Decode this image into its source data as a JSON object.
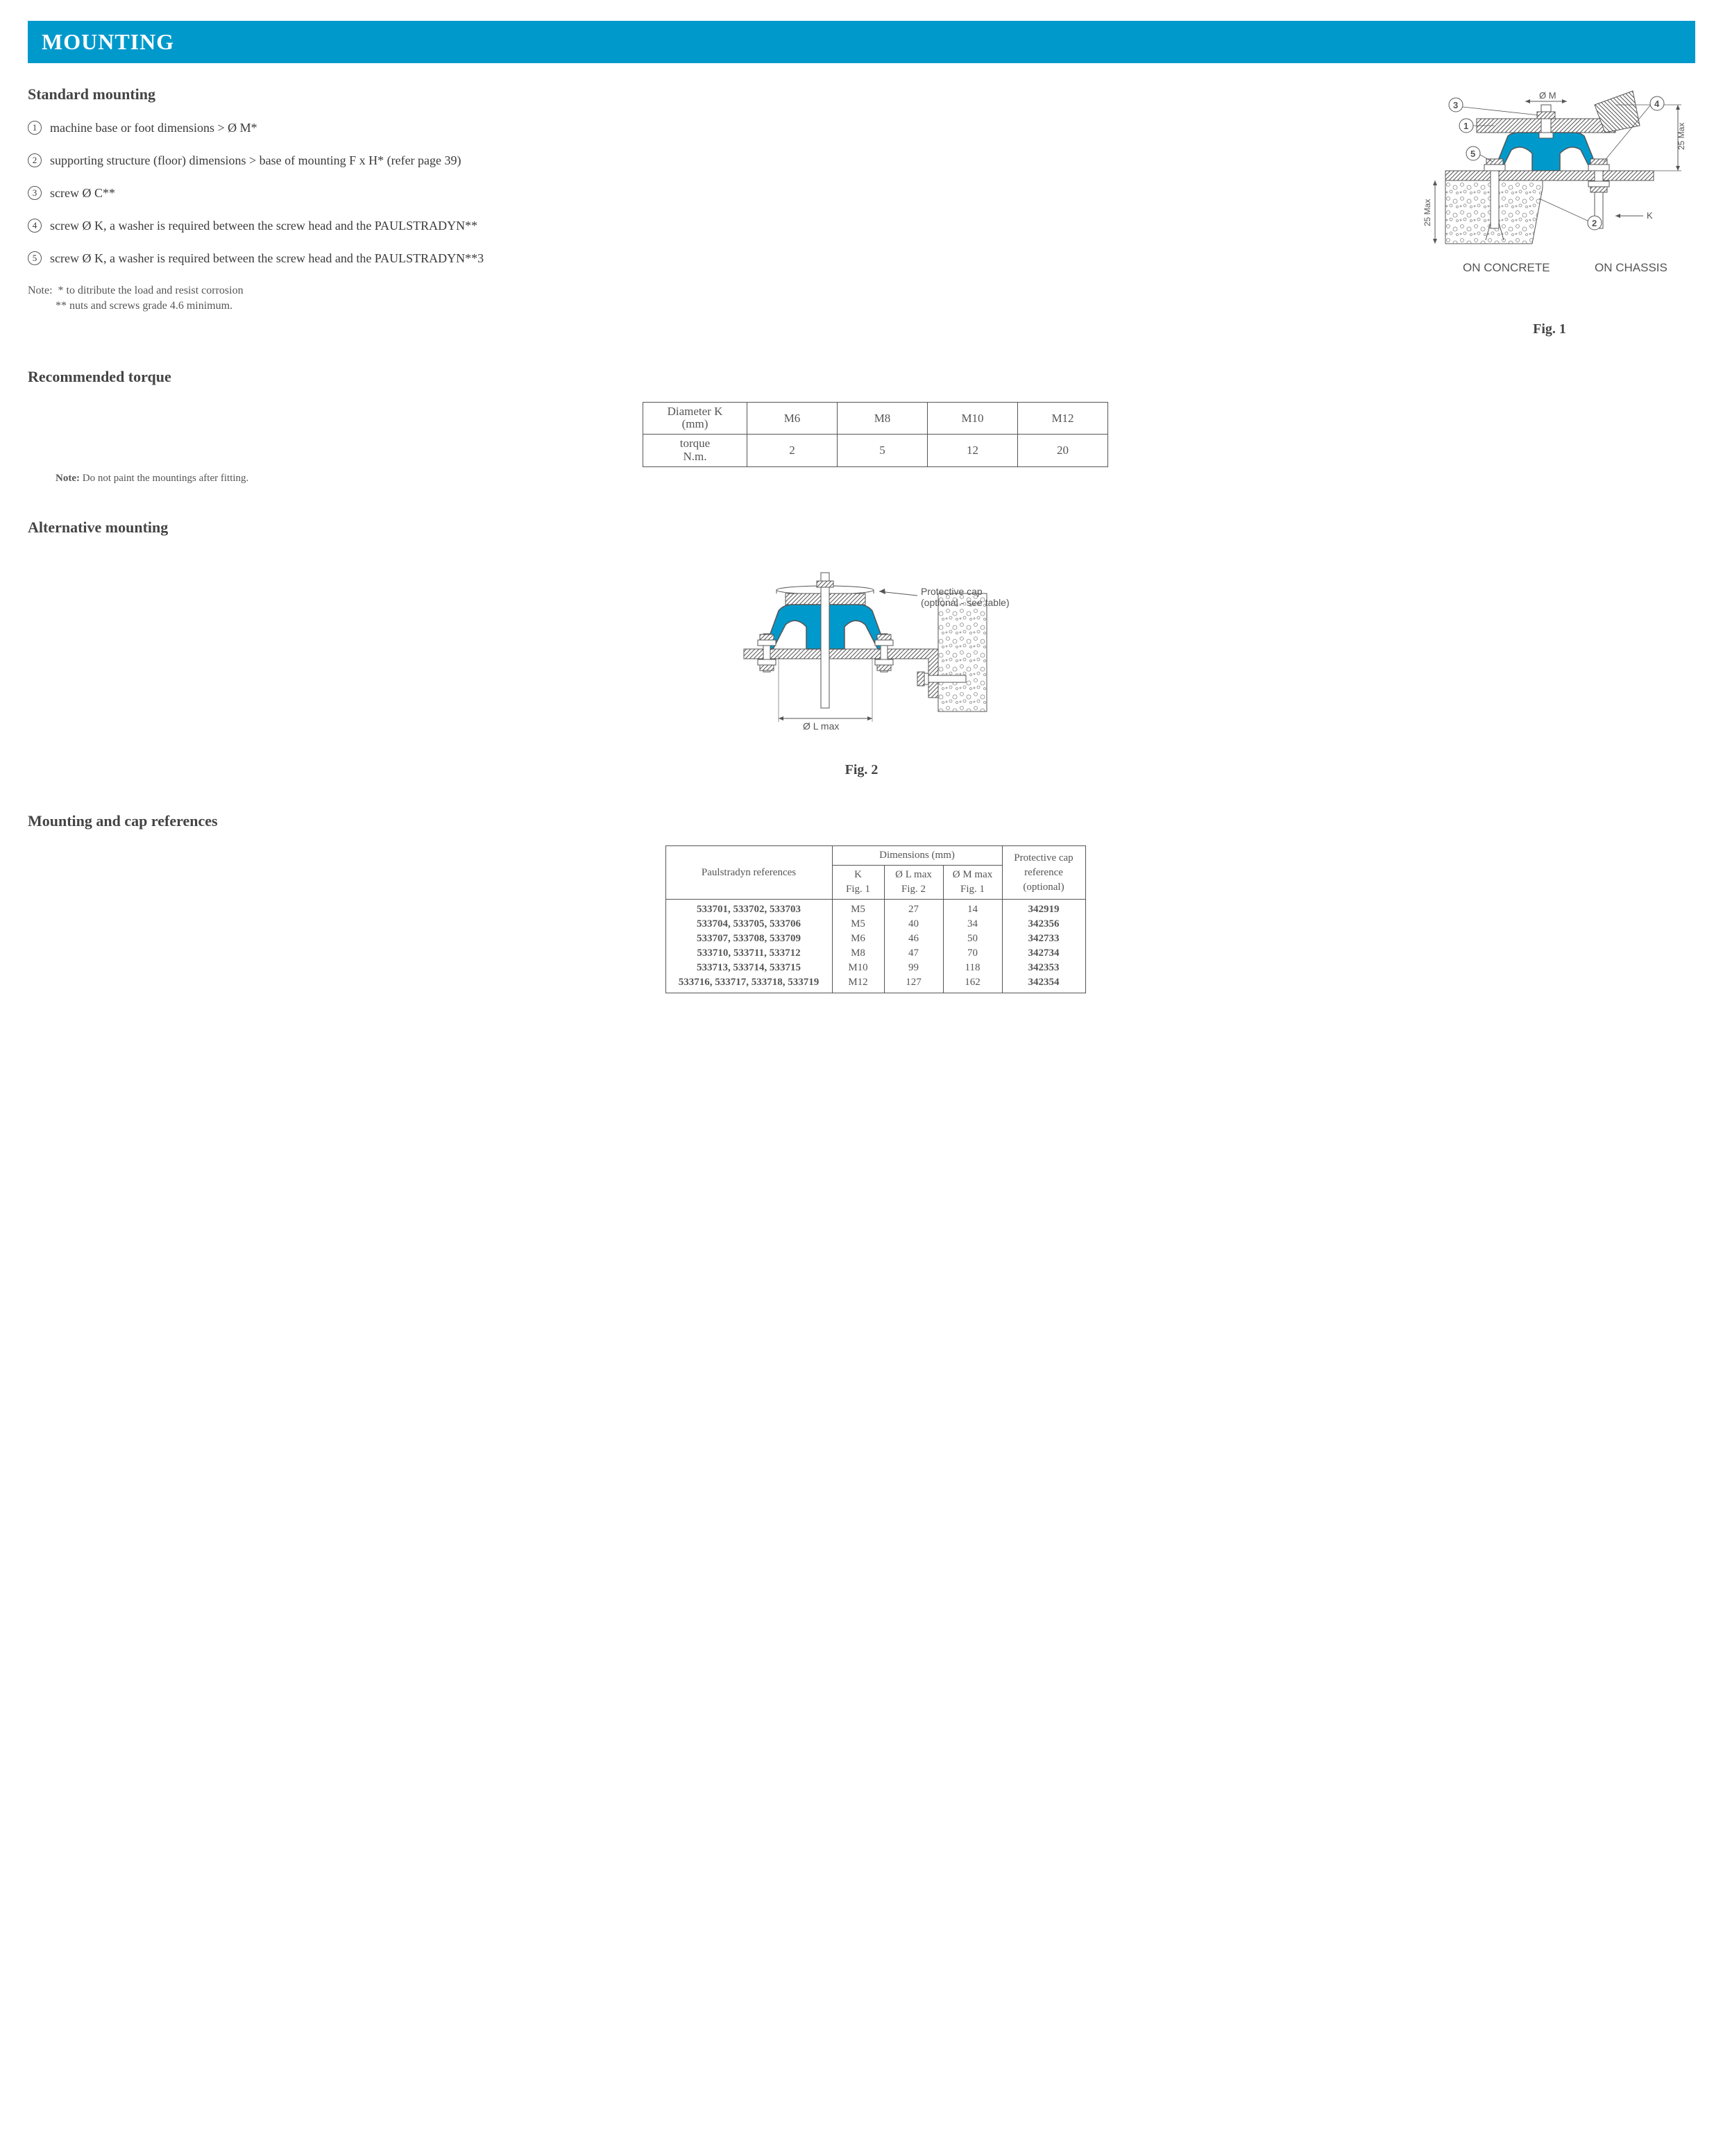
{
  "banner": {
    "title": "MOUNTING",
    "bg_color": "#0099cc",
    "text_color": "#ffffff"
  },
  "standard_mounting": {
    "heading": "Standard mounting",
    "items": [
      {
        "num": "1",
        "text": "machine base or foot dimensions > Ø M*"
      },
      {
        "num": "2",
        "text": "supporting structure (floor) dimensions > base of mounting F x H* (refer page 39)"
      },
      {
        "num": "3",
        "text": "screw Ø C**"
      },
      {
        "num": "4",
        "text": "screw Ø K, a washer is required between the screw head and the PAULSTRADYN**"
      },
      {
        "num": "5",
        "text": "screw Ø K, a washer is required between the screw head and the PAULSTRADYN**3"
      }
    ],
    "note_label": "Note:",
    "note1": "* to ditribute the load and resist corrosion",
    "note2": "** nuts and screws grade 4.6 minimum."
  },
  "fig1": {
    "labels": {
      "dim_m": "Ø M",
      "dim_25a": "25 Max",
      "dim_25b": "25 Max",
      "dim_k": "K",
      "c1": "1",
      "c2": "2",
      "c3": "3",
      "c4": "4",
      "c5": "5"
    },
    "cap_left": "ON CONCRETE",
    "cap_right": "ON CHASSIS",
    "caption": "Fig. 1",
    "colors": {
      "mount": "#0099cc",
      "line": "#555555",
      "bg": "#ffffff"
    }
  },
  "torque": {
    "heading": "Recommended torque",
    "columns": [
      "Diameter K (mm)",
      "M6",
      "M8",
      "M10",
      "M12"
    ],
    "row_label": "torque N.m.",
    "values": [
      "2",
      "5",
      "12",
      "20"
    ],
    "note_label": "Note:",
    "note": "Do not paint the mountings after fitting."
  },
  "alt_mounting": {
    "heading": "Alternative mounting",
    "cap_label1": "Protective cap",
    "cap_label2": "(optional - see table)",
    "dim_l": "Ø L max",
    "caption": "Fig. 2"
  },
  "ref_table": {
    "heading": "Mounting and cap references",
    "head_dims": "Dimensions (mm)",
    "head_refs": "Paulstradyn references",
    "head_k": "K Fig. 1",
    "head_l": "Ø L max Fig. 2",
    "head_m": "Ø M max Fig. 1",
    "head_cap": "Protective cap reference (optional)",
    "rows": [
      {
        "refs": "533701, 533702, 533703",
        "k": "M5",
        "l": "27",
        "m": "14",
        "cap": "342919"
      },
      {
        "refs": "533704, 533705, 533706",
        "k": "M5",
        "l": "40",
        "m": "34",
        "cap": "342356"
      },
      {
        "refs": "533707, 533708, 533709",
        "k": "M6",
        "l": "46",
        "m": "50",
        "cap": "342733"
      },
      {
        "refs": "533710, 533711, 533712",
        "k": "M8",
        "l": "47",
        "m": "70",
        "cap": "342734"
      },
      {
        "refs": "533713, 533714, 533715",
        "k": "M10",
        "l": "99",
        "m": "118",
        "cap": "342353"
      },
      {
        "refs": "533716, 533717, 533718, 533719",
        "k": "M12",
        "l": "127",
        "m": "162",
        "cap": "342354"
      }
    ]
  }
}
